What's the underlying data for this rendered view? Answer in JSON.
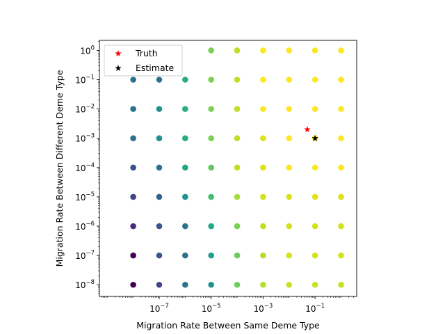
{
  "chart_data": {
    "type": "scatter",
    "xlabel": "Migration Rate Between Same Deme Type",
    "ylabel": "Migration Rate Between Different Deme Type",
    "xscale": "log",
    "yscale": "log",
    "xlim": [
      5e-10,
      4
    ],
    "ylim": [
      4e-09,
      2.2
    ],
    "grid": false,
    "legend_position": "top-left",
    "xticks": [
      1e-07,
      1e-05,
      0.001,
      0.1
    ],
    "yticks": [
      1e-08,
      1e-07,
      1e-06,
      1e-05,
      0.0001,
      0.001,
      0.01,
      0.1,
      1
    ],
    "xtick_labels": [
      {
        "base": "10",
        "exp": "−7"
      },
      {
        "base": "10",
        "exp": "−5"
      },
      {
        "base": "10",
        "exp": "−3"
      },
      {
        "base": "10",
        "exp": "−1"
      }
    ],
    "ytick_labels": [
      {
        "base": "10",
        "exp": "−8"
      },
      {
        "base": "10",
        "exp": "−7"
      },
      {
        "base": "10",
        "exp": "−6"
      },
      {
        "base": "10",
        "exp": "−5"
      },
      {
        "base": "10",
        "exp": "−4"
      },
      {
        "base": "10",
        "exp": "−3"
      },
      {
        "base": "10",
        "exp": "−2"
      },
      {
        "base": "10",
        "exp": "−1"
      },
      {
        "base": "10",
        "exp": "0"
      }
    ],
    "grid_x": [
      1e-08,
      1e-07,
      1e-06,
      1e-05,
      0.0001,
      0.001,
      0.01,
      0.1,
      1
    ],
    "grid_y": [
      1e-08,
      1e-07,
      1e-06,
      1e-05,
      0.0001,
      0.001,
      0.01,
      0.1,
      1
    ],
    "grid_colors_top_to_bottom": [
      [
        null,
        null,
        null,
        "#7ad151",
        "#bddf26",
        "#fde725",
        "#fde725",
        "#fde725",
        "#fde725"
      ],
      [
        "#2c728e",
        "#2c728e",
        "#27ad81",
        "#7ad151",
        "#bddf26",
        "#fde725",
        "#fde725",
        "#fde725",
        "#fde725"
      ],
      [
        "#2c728e",
        "#21918c",
        "#27ad81",
        "#7ad151",
        "#bddf26",
        "#fde725",
        "#fde725",
        "#fde725",
        "#fde725"
      ],
      [
        "#2c728e",
        "#21918c",
        "#27ad81",
        "#7ad151",
        "#bddf26",
        "#dde318",
        "#fde725",
        "#fde725",
        "#fde725"
      ],
      [
        "#3b528b",
        "#2c728e",
        "#21a685",
        "#5ec962",
        "#bddf26",
        "#dde318",
        "#fde725",
        "#fde725",
        "#fde725"
      ],
      [
        "#414487",
        "#33638d",
        "#21918c",
        "#44bf70",
        "#a5db36",
        "#d2e21b",
        "#dde318",
        "#dde318",
        "#dde318"
      ],
      [
        "#472d7b",
        "#3b528b",
        "#2c728e",
        "#22a884",
        "#7ad151",
        "#bddf26",
        "#d2e21b",
        "#d2e21b",
        "#d2e21b"
      ],
      [
        "#440154",
        "#3b528b",
        "#2c728e",
        "#1fa088",
        "#6ccd5a",
        "#b5de2b",
        "#d2e21b",
        "#d2e21b",
        "#d2e21b"
      ],
      [
        "#440154",
        "#414487",
        "#2c728e",
        "#21918c",
        "#6ccd5a",
        "#b5de2b",
        "#c8e020",
        "#c8e020",
        "#c8e020"
      ]
    ],
    "truth": {
      "name": "Truth",
      "x": 0.05,
      "y": 0.002,
      "color": "#ff0000",
      "marker": "star"
    },
    "estimate": {
      "name": "Estimate",
      "x": 0.1,
      "y": 0.001,
      "color": "#000000",
      "marker": "star"
    }
  }
}
